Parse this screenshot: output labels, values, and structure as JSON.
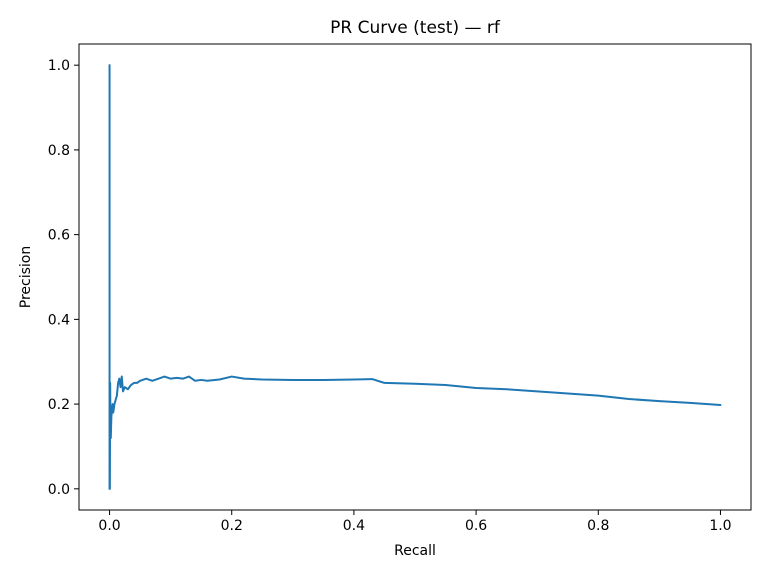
{
  "chart_data": {
    "type": "line",
    "title": "PR Curve (test) — rf",
    "xlabel": "Recall",
    "ylabel": "Precision",
    "xlim": [
      -0.05,
      1.05
    ],
    "ylim": [
      -0.05,
      1.05
    ],
    "x_ticks": [
      "0.0",
      "0.2",
      "0.4",
      "0.6",
      "0.8",
      "1.0"
    ],
    "y_ticks": [
      "0.0",
      "0.2",
      "0.4",
      "0.6",
      "0.8",
      "1.0"
    ],
    "x_tick_values": [
      0.0,
      0.2,
      0.4,
      0.6,
      0.8,
      1.0
    ],
    "y_tick_values": [
      0.0,
      0.2,
      0.4,
      0.6,
      0.8,
      1.0
    ],
    "grid": false,
    "line_color": "#1f77b4",
    "series": [
      {
        "x": [
          0.0,
          0.0,
          0.0005,
          0.001,
          0.0015,
          0.002,
          0.003,
          0.004,
          0.005,
          0.006,
          0.008,
          0.01,
          0.012,
          0.014,
          0.016,
          0.018,
          0.02,
          0.022,
          0.025,
          0.03,
          0.035,
          0.04,
          0.045,
          0.05,
          0.06,
          0.07,
          0.08,
          0.09,
          0.1,
          0.11,
          0.12,
          0.13,
          0.14,
          0.15,
          0.16,
          0.18,
          0.2,
          0.22,
          0.25,
          0.3,
          0.35,
          0.4,
          0.43,
          0.45,
          0.5,
          0.55,
          0.6,
          0.65,
          0.7,
          0.75,
          0.8,
          0.85,
          0.9,
          0.95,
          1.0
        ],
        "y": [
          1.0,
          0.0,
          0.0,
          0.25,
          0.15,
          0.12,
          0.17,
          0.19,
          0.2,
          0.18,
          0.2,
          0.21,
          0.22,
          0.25,
          0.26,
          0.24,
          0.265,
          0.23,
          0.24,
          0.235,
          0.245,
          0.25,
          0.25,
          0.255,
          0.26,
          0.255,
          0.26,
          0.265,
          0.26,
          0.262,
          0.26,
          0.265,
          0.255,
          0.257,
          0.255,
          0.258,
          0.265,
          0.26,
          0.258,
          0.257,
          0.257,
          0.258,
          0.259,
          0.25,
          0.248,
          0.245,
          0.238,
          0.235,
          0.23,
          0.225,
          0.22,
          0.212,
          0.207,
          0.203,
          0.198
        ]
      }
    ]
  }
}
